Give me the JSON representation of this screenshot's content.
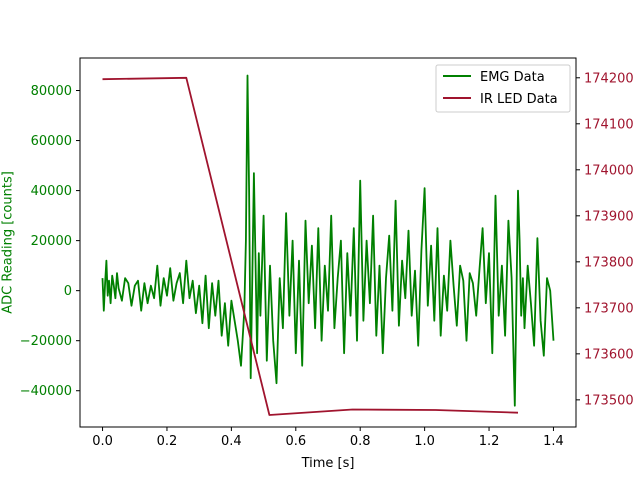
{
  "chart_data": {
    "type": "line",
    "xlabel": "Time [s]",
    "ylabel_left": "ADC Reading [counts]",
    "ylabel_right": "",
    "xlim": [
      -0.07,
      1.47
    ],
    "ylim_left": [
      -54500,
      93000
    ],
    "ylim_right": [
      173441,
      174243
    ],
    "x_ticks": [
      0.0,
      0.2,
      0.4,
      0.6,
      0.8,
      1.0,
      1.2,
      1.4
    ],
    "x_tick_labels": [
      "0.0",
      "0.2",
      "0.4",
      "0.6",
      "0.8",
      "1.0",
      "1.2",
      "1.4"
    ],
    "y_left_ticks": [
      -40000,
      -20000,
      0,
      20000,
      40000,
      60000,
      80000
    ],
    "y_left_tick_labels": [
      "−40000",
      "−20000",
      "0",
      "20000",
      "40000",
      "60000",
      "80000"
    ],
    "y_right_ticks": [
      173500,
      173600,
      173700,
      173800,
      173900,
      174000,
      174100,
      174200
    ],
    "y_right_tick_labels": [
      "173500",
      "173600",
      "173700",
      "173800",
      "173900",
      "174000",
      "174100",
      "174200"
    ],
    "grid": false,
    "legend_position": "top-right",
    "series": [
      {
        "name": "EMG Data",
        "axis": "left",
        "color": "#008000",
        "x": [
          0.0,
          0.004,
          0.008,
          0.012,
          0.016,
          0.02,
          0.025,
          0.03,
          0.035,
          0.04,
          0.045,
          0.05,
          0.06,
          0.07,
          0.08,
          0.09,
          0.1,
          0.11,
          0.12,
          0.13,
          0.14,
          0.15,
          0.16,
          0.17,
          0.18,
          0.19,
          0.2,
          0.21,
          0.22,
          0.23,
          0.24,
          0.25,
          0.26,
          0.27,
          0.28,
          0.29,
          0.3,
          0.31,
          0.32,
          0.33,
          0.34,
          0.35,
          0.36,
          0.37,
          0.38,
          0.39,
          0.4,
          0.41,
          0.42,
          0.43,
          0.44,
          0.445,
          0.45,
          0.455,
          0.46,
          0.465,
          0.47,
          0.475,
          0.48,
          0.485,
          0.49,
          0.5,
          0.51,
          0.52,
          0.53,
          0.54,
          0.55,
          0.56,
          0.57,
          0.58,
          0.59,
          0.6,
          0.61,
          0.62,
          0.63,
          0.64,
          0.65,
          0.66,
          0.67,
          0.68,
          0.69,
          0.7,
          0.71,
          0.72,
          0.73,
          0.74,
          0.75,
          0.76,
          0.77,
          0.78,
          0.79,
          0.8,
          0.81,
          0.82,
          0.83,
          0.84,
          0.85,
          0.86,
          0.87,
          0.88,
          0.89,
          0.9,
          0.91,
          0.92,
          0.93,
          0.94,
          0.95,
          0.96,
          0.97,
          0.98,
          0.99,
          1.0,
          1.01,
          1.02,
          1.03,
          1.04,
          1.05,
          1.06,
          1.07,
          1.08,
          1.09,
          1.1,
          1.11,
          1.12,
          1.13,
          1.14,
          1.15,
          1.16,
          1.17,
          1.18,
          1.19,
          1.2,
          1.21,
          1.22,
          1.23,
          1.24,
          1.25,
          1.26,
          1.27,
          1.28,
          1.29,
          1.295,
          1.3,
          1.305,
          1.31,
          1.32,
          1.33,
          1.34,
          1.35,
          1.36,
          1.37,
          1.38,
          1.39,
          1.4
        ],
        "y": [
          5000,
          -8000,
          3000,
          12000,
          -2000,
          4000,
          -5000,
          6000,
          2000,
          -3000,
          7000,
          1000,
          -4000,
          5000,
          3000,
          -6000,
          2000,
          4000,
          -8000,
          3000,
          -5000,
          2000,
          -3000,
          10000,
          -6000,
          5000,
          -2000,
          9000,
          -4000,
          3000,
          7000,
          -5000,
          12000,
          -3000,
          4000,
          -9000,
          2000,
          -13000,
          6000,
          -15000,
          3000,
          -10000,
          4000,
          -18000,
          -5000,
          -22000,
          -4000,
          -12000,
          -20000,
          -30000,
          -8000,
          20000,
          86000,
          40000,
          -35000,
          5000,
          47000,
          12000,
          -25000,
          15000,
          -10000,
          30000,
          -28000,
          10000,
          -20000,
          -37000,
          5000,
          -15000,
          31000,
          -10000,
          20000,
          -25000,
          12000,
          -30000,
          28000,
          -5000,
          18000,
          -15000,
          25000,
          -20000,
          10000,
          -8000,
          30000,
          -15000,
          5000,
          20000,
          -25000,
          15000,
          -10000,
          25000,
          -20000,
          44000,
          -12000,
          20000,
          -5000,
          30000,
          -18000,
          10000,
          -25000,
          5000,
          22000,
          -8000,
          36000,
          -14000,
          12000,
          -3000,
          24000,
          -10000,
          8000,
          -22000,
          16000,
          41000,
          -6000,
          18000,
          -12000,
          25000,
          -18000,
          6000,
          -8000,
          20000,
          2000,
          -14000,
          10000,
          4000,
          -20000,
          7000,
          3000,
          -10000,
          8000,
          25000,
          -5000,
          15000,
          -25000,
          38000,
          -10000,
          10000,
          -18000,
          28000,
          5000,
          -46000,
          40000,
          20000,
          -10000,
          5000,
          -15000,
          10000,
          -5000,
          -22000,
          21000,
          -12000,
          -26000,
          5000,
          0,
          -20000
        ]
      },
      {
        "name": "IR LED Data",
        "axis": "right",
        "color": "#a0142e",
        "x": [
          0.0,
          0.26,
          0.518,
          0.776,
          1.034,
          1.29
        ],
        "y": [
          174197,
          174200,
          173467,
          173479,
          173478,
          173472
        ]
      }
    ]
  }
}
